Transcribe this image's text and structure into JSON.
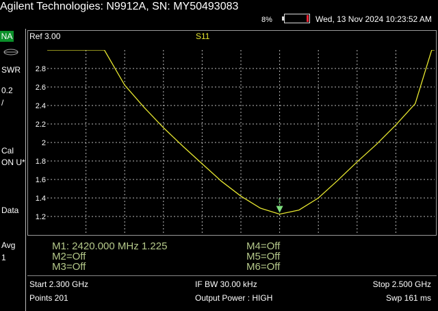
{
  "titlebar": {
    "title": "Agilent Technologies: N9912A, SN: MY50493083",
    "battery_percent": "8%",
    "datetime": "Wed, 13 Nov 2024 10:23:52 AM"
  },
  "sidebar": {
    "mode": "NA",
    "format": "SWR",
    "scale_value": "0.2",
    "scale_unit": "/",
    "cal_label": "Cal",
    "cal_status": "ON U*",
    "data_label": "Data",
    "avg_label": "Avg",
    "avg_value": "1"
  },
  "trace": {
    "ref_label": "Ref 3.00",
    "trace_name": "S11",
    "y_tick_labels": [
      "2.8",
      "2.6",
      "2.4",
      "2.2",
      "2",
      "1.8",
      "1.6",
      "1.4",
      "1.2"
    ],
    "trace_color": "#e8e830",
    "grid_color": "#bdbdbd",
    "marker_color": "#7ee07e",
    "marker_label": "1"
  },
  "chart_data": {
    "type": "line",
    "title": "S11",
    "xlabel": "",
    "ylabel": "",
    "xlim": [
      2.3,
      2.5
    ],
    "ylim": [
      1.0,
      3.0
    ],
    "x_unit": "GHz",
    "grid": true,
    "series": [
      {
        "name": "S11",
        "x": [
          2.3,
          2.3165,
          2.3295,
          2.34,
          2.35,
          2.36,
          2.37,
          2.38,
          2.39,
          2.4,
          2.41,
          2.42,
          2.43,
          2.44,
          2.45,
          2.46,
          2.47,
          2.48,
          2.49,
          2.4985,
          2.5
        ],
        "values": [
          3.0,
          3.0,
          3.0,
          2.62,
          2.38,
          2.16,
          1.96,
          1.77,
          1.58,
          1.42,
          1.29,
          1.225,
          1.27,
          1.4,
          1.59,
          1.79,
          1.98,
          2.19,
          2.42,
          3.0,
          3.0
        ]
      }
    ],
    "markers": [
      {
        "name": "M1",
        "x": 2.42,
        "y": 1.225
      }
    ]
  },
  "markers_panel": {
    "m1": "M1:  2420.000 MHz   1.225",
    "m2": "M2=Off",
    "m3": "M3=Off",
    "m4": "M4=Off",
    "m5": "M5=Off",
    "m6": "M6=Off"
  },
  "footer": {
    "start": "Start 2.300 GHz",
    "points": "Points 201",
    "ifbw": "IF BW 30.00 kHz",
    "output_power": "Output Power : HIGH",
    "stop": "Stop 2.500 GHz",
    "sweep": "Swp 161 ms"
  }
}
